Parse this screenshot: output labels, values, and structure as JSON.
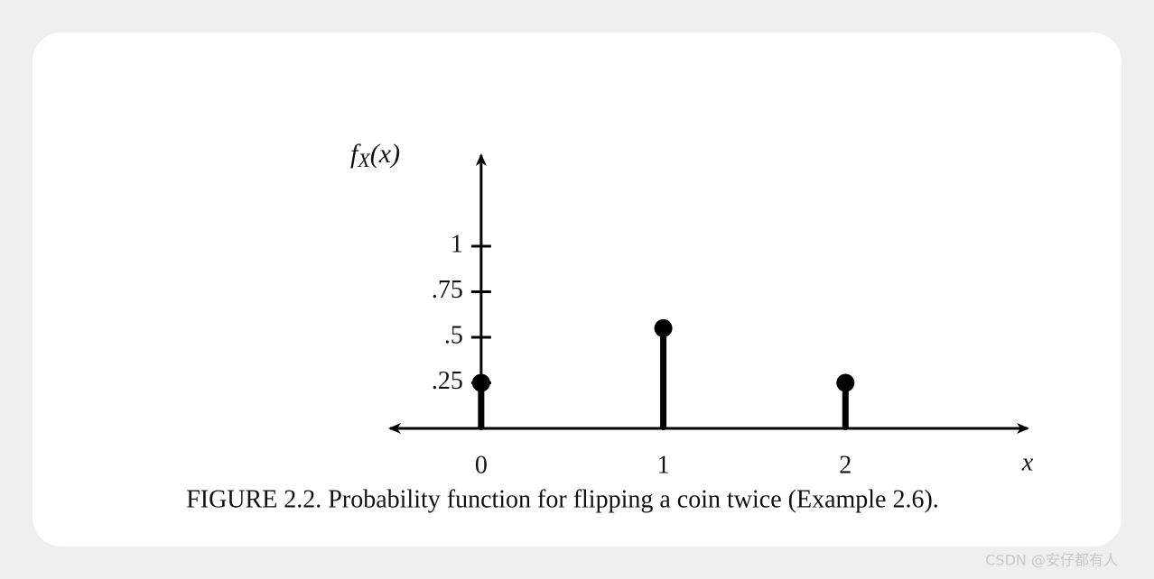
{
  "chart_data": {
    "type": "stem",
    "x_label": "x",
    "y_label": {
      "base": "f",
      "subscript": "X",
      "argument": "(x)"
    },
    "caption": "FIGURE 2.2. Probability function for flipping a coin twice (Example 2.6).",
    "x": [
      0,
      1,
      2
    ],
    "values": [
      0.25,
      0.55,
      0.25
    ],
    "color": "#000000",
    "xlim": [
      -0.5,
      3
    ],
    "xticks": [
      0,
      1,
      2
    ],
    "ylim": [
      0,
      1.5
    ],
    "yticks": [
      {
        "value": 0.25,
        "label": ".25"
      },
      {
        "value": 0.5,
        "label": ".5"
      },
      {
        "value": 0.75,
        "label": ".75"
      },
      1
    ],
    "grid": false
  },
  "watermark": "CSDN @安仔都有人"
}
